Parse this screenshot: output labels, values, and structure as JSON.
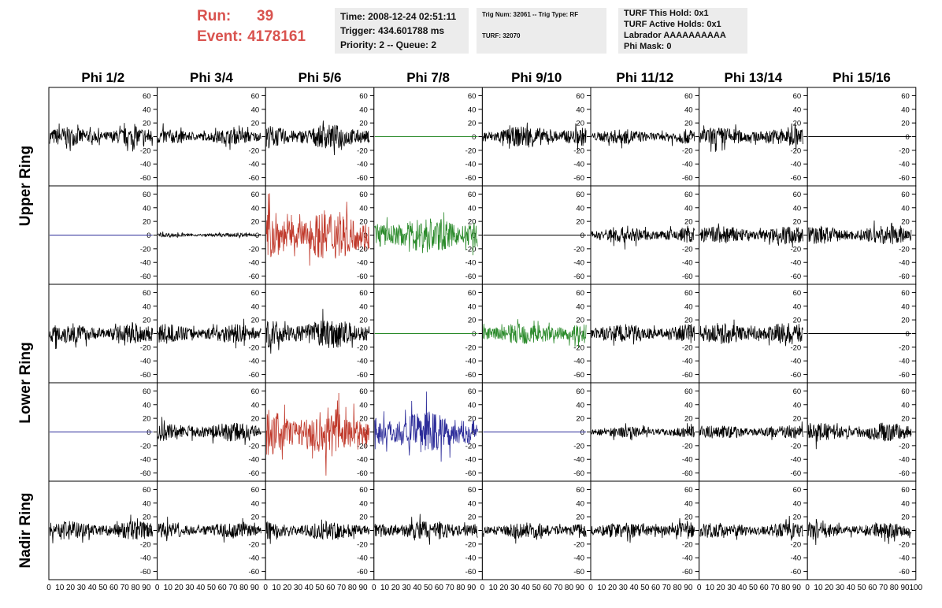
{
  "header": {
    "run_label": "Run:",
    "run_value": "39",
    "event_label": "Event:",
    "event_value": "4178161"
  },
  "info_panel_1": {
    "time": "Time: 2008-12-24 02:51:11",
    "trigger": "Trigger: 434.601788 ms",
    "priority": "Priority: 2 -- Queue: 2"
  },
  "info_panel_2": {
    "trig": "Trig Num: 32061 -- Trig Type: RF",
    "turf": "TURF: 32070"
  },
  "info_panel_3": {
    "this_hold": "TURF This Hold: 0x1",
    "active_holds": "TURF Active Holds: 0x1",
    "labrador": "Labrador AAAAAAAAAA",
    "phi_mask": "Phi Mask: 0"
  },
  "chart_data": {
    "type": "line",
    "columns": [
      "Phi 1/2",
      "Phi 3/4",
      "Phi 5/6",
      "Phi 7/8",
      "Phi 9/10",
      "Phi 11/12",
      "Phi 13/14",
      "Phi 15/16"
    ],
    "ring_labels": [
      "Upper Ring",
      "Lower Ring",
      "Nadir Ring"
    ],
    "ylim": [
      -72,
      72
    ],
    "yticks": [
      -60,
      -40,
      -20,
      0,
      20,
      40,
      60
    ],
    "xlim": [
      0,
      100
    ],
    "xticks": [
      0,
      10,
      20,
      30,
      40,
      50,
      60,
      70,
      80,
      90,
      100
    ],
    "colors": {
      "normal": "#000000",
      "hpol": "#c0392b",
      "vpol": "#2a8a2a",
      "blue": "#2d2d9a",
      "flat": "#2a8a2a"
    },
    "rows": [
      {
        "ring": "Upper Ring",
        "panels": [
          {
            "color": "normal",
            "amplitude": 14,
            "flat": false
          },
          {
            "color": "normal",
            "amplitude": 11,
            "flat": false
          },
          {
            "color": "normal",
            "amplitude": 18,
            "flat": false
          },
          {
            "color": "vpol",
            "amplitude": 0,
            "flat": true
          },
          {
            "color": "normal",
            "amplitude": 16,
            "flat": false
          },
          {
            "color": "normal",
            "amplitude": 11,
            "flat": false
          },
          {
            "color": "normal",
            "amplitude": 14,
            "flat": false
          },
          {
            "color": "normal",
            "amplitude": 0,
            "flat": true
          }
        ]
      },
      {
        "ring": "Upper Ring",
        "panels": [
          {
            "color": "blue",
            "amplitude": 0,
            "flat": true
          },
          {
            "color": "normal",
            "amplitude": 3,
            "flat": false
          },
          {
            "color": "hpol",
            "amplitude": 38,
            "flat": false
          },
          {
            "color": "vpol",
            "amplitude": 28,
            "flat": false
          },
          {
            "color": "normal",
            "amplitude": 0,
            "flat": true
          },
          {
            "color": "normal",
            "amplitude": 12,
            "flat": false
          },
          {
            "color": "normal",
            "amplitude": 14,
            "flat": false
          },
          {
            "color": "normal",
            "amplitude": 14,
            "flat": false
          }
        ]
      },
      {
        "ring": "Lower Ring",
        "panels": [
          {
            "color": "normal",
            "amplitude": 15,
            "flat": false
          },
          {
            "color": "normal",
            "amplitude": 14,
            "flat": false
          },
          {
            "color": "normal",
            "amplitude": 22,
            "flat": false
          },
          {
            "color": "vpol",
            "amplitude": 0,
            "flat": true
          },
          {
            "color": "vpol",
            "amplitude": 17,
            "flat": false
          },
          {
            "color": "normal",
            "amplitude": 14,
            "flat": false
          },
          {
            "color": "normal",
            "amplitude": 16,
            "flat": false
          },
          {
            "color": "normal",
            "amplitude": 0,
            "flat": true
          }
        ]
      },
      {
        "ring": "Lower Ring",
        "panels": [
          {
            "color": "blue",
            "amplitude": 0,
            "flat": true
          },
          {
            "color": "normal",
            "amplitude": 14,
            "flat": false
          },
          {
            "color": "hpol",
            "amplitude": 38,
            "flat": false
          },
          {
            "color": "blue",
            "amplitude": 33,
            "flat": false
          },
          {
            "color": "blue",
            "amplitude": 0,
            "flat": true
          },
          {
            "color": "normal",
            "amplitude": 8,
            "flat": false
          },
          {
            "color": "normal",
            "amplitude": 10,
            "flat": false
          },
          {
            "color": "normal",
            "amplitude": 14,
            "flat": false
          }
        ]
      },
      {
        "ring": "Nadir Ring",
        "panels": [
          {
            "color": "normal",
            "amplitude": 14,
            "flat": false
          },
          {
            "color": "normal",
            "amplitude": 12,
            "flat": false
          },
          {
            "color": "normal",
            "amplitude": 14,
            "flat": false
          },
          {
            "color": "normal",
            "amplitude": 15,
            "flat": false
          },
          {
            "color": "normal",
            "amplitude": 12,
            "flat": false
          },
          {
            "color": "normal",
            "amplitude": 12,
            "flat": false
          },
          {
            "color": "normal",
            "amplitude": 12,
            "flat": false
          },
          {
            "color": "normal",
            "amplitude": 12,
            "flat": false
          }
        ]
      }
    ]
  }
}
